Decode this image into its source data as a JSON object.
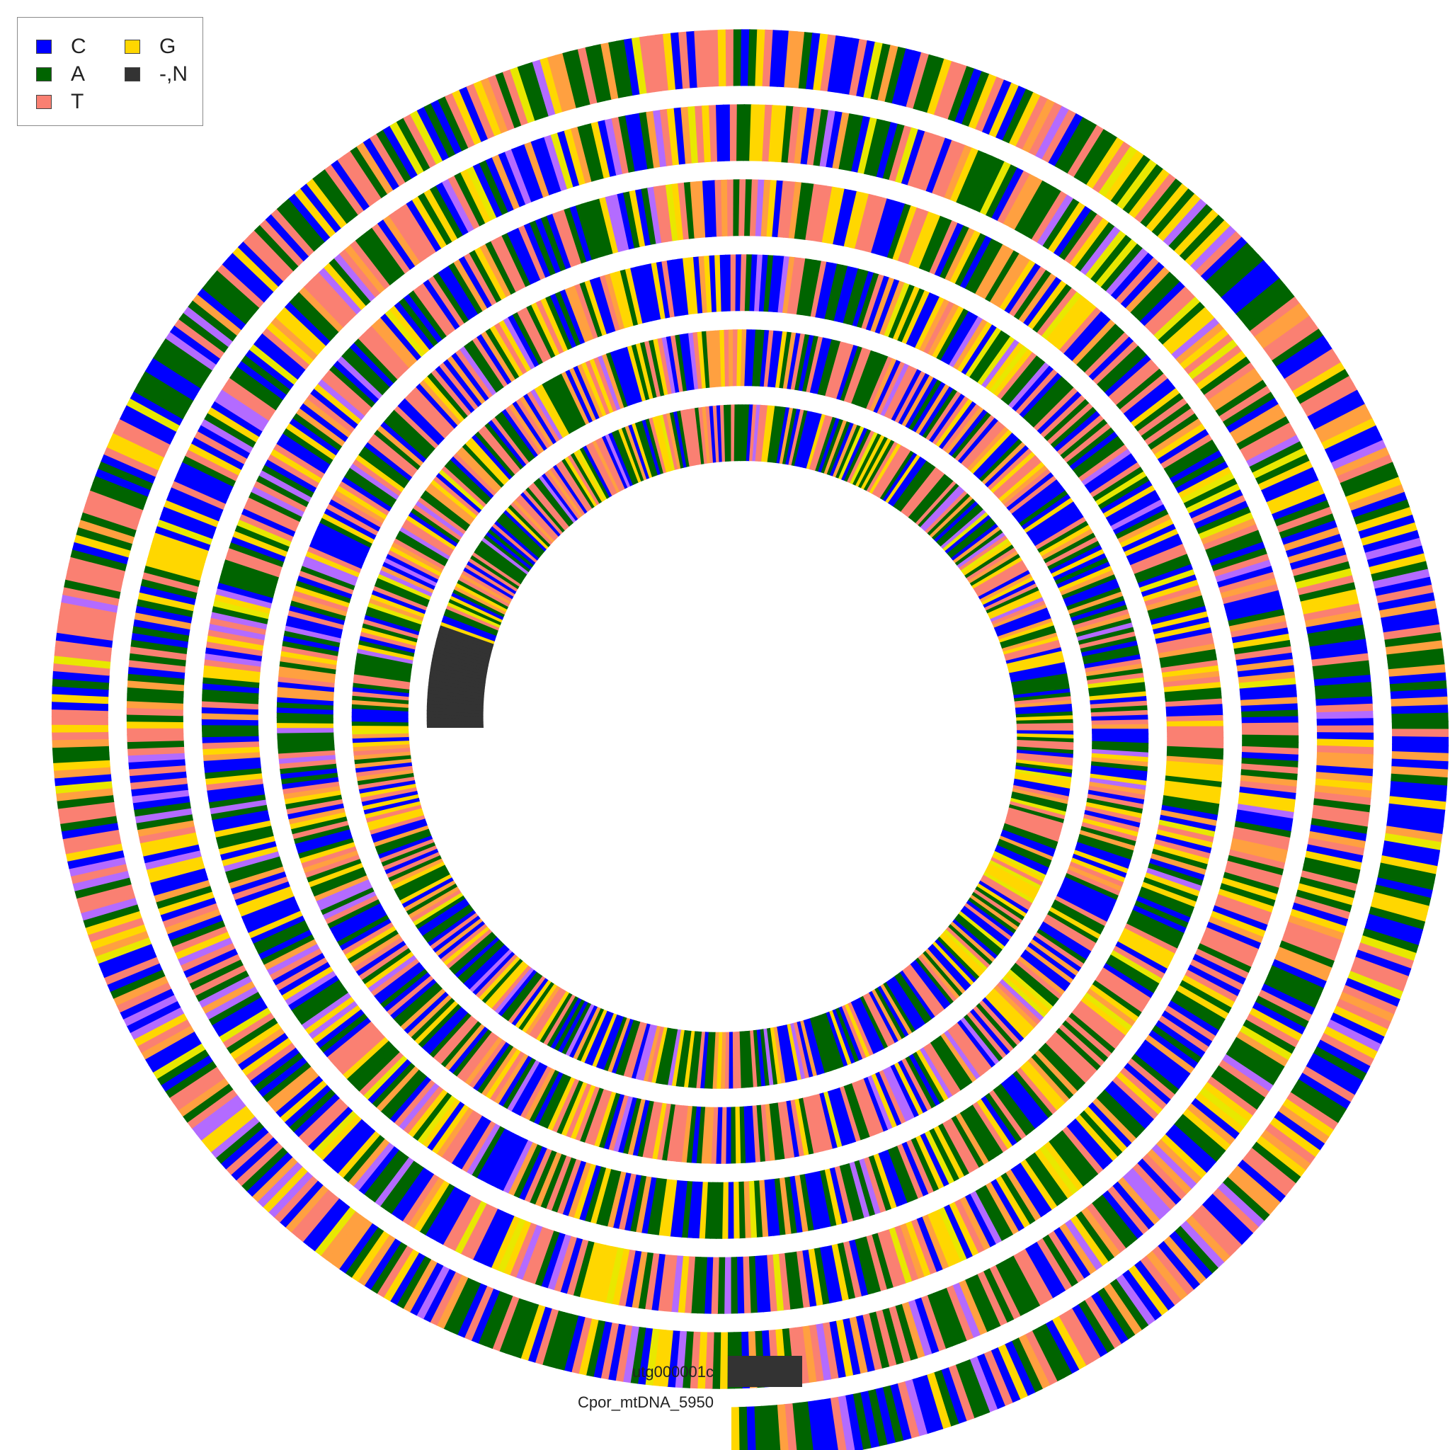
{
  "legend": {
    "items": [
      {
        "label": "C",
        "color": "#0000ff",
        "icon": "square-swatch"
      },
      {
        "label": "A",
        "color": "#006400",
        "icon": "square-swatch"
      },
      {
        "label": "T",
        "color": "#fa8072",
        "icon": "square-swatch"
      },
      {
        "label": "G",
        "color": "#ffd700",
        "icon": "square-swatch"
      },
      {
        "label": "-,N",
        "color": "#333333",
        "icon": "square-swatch"
      }
    ]
  },
  "tracks": {
    "outer_label": "utg000001c",
    "inner_label": "Cpor_mtDNA_5950"
  },
  "colors": {
    "gap_block": "#333333",
    "extra_stripe": "#ffa040",
    "extra_stripe_2": "#b36bff",
    "extra_stripe_3": "#e8e800"
  }
}
